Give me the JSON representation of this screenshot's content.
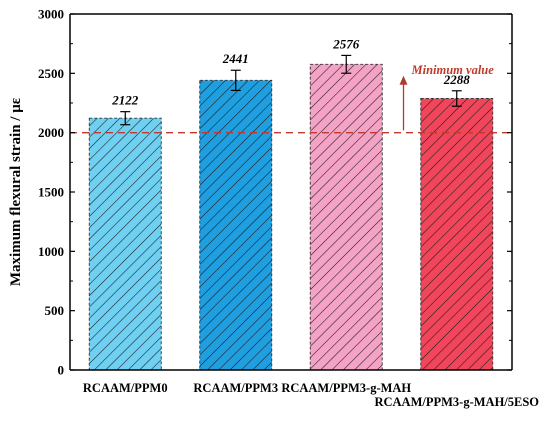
{
  "chart_data": {
    "type": "bar",
    "categories": [
      "RCAAM/PPM0",
      "RCAAM/PPM3",
      "RCAAM/PPM3-g-MAH",
      "RCAAM/PPM3-g-MAH/5ESO"
    ],
    "values": [
      2122,
      2441,
      2576,
      2288
    ],
    "errors": [
      55,
      85,
      75,
      65
    ],
    "data_labels": [
      "2122",
      "2441",
      "2576",
      "2288"
    ],
    "ylabel": "Maximum flexural strain / με",
    "xlabel": "",
    "ylim": [
      0,
      3000
    ],
    "yticks": [
      0,
      500,
      1000,
      1500,
      2000,
      2500,
      3000
    ],
    "ytick_labels": [
      "0",
      "500",
      "1000",
      "1500",
      "2000",
      "2500",
      "3000"
    ],
    "reference_line": {
      "value": 2000,
      "label": "Minimum value",
      "color": "#c0392b"
    },
    "bar_colors": [
      "#6fd0f2",
      "#1f9ee0",
      "#f4a3c6",
      "#f0455a"
    ],
    "hatch": "diagonal",
    "grid": false,
    "legend": "none"
  }
}
